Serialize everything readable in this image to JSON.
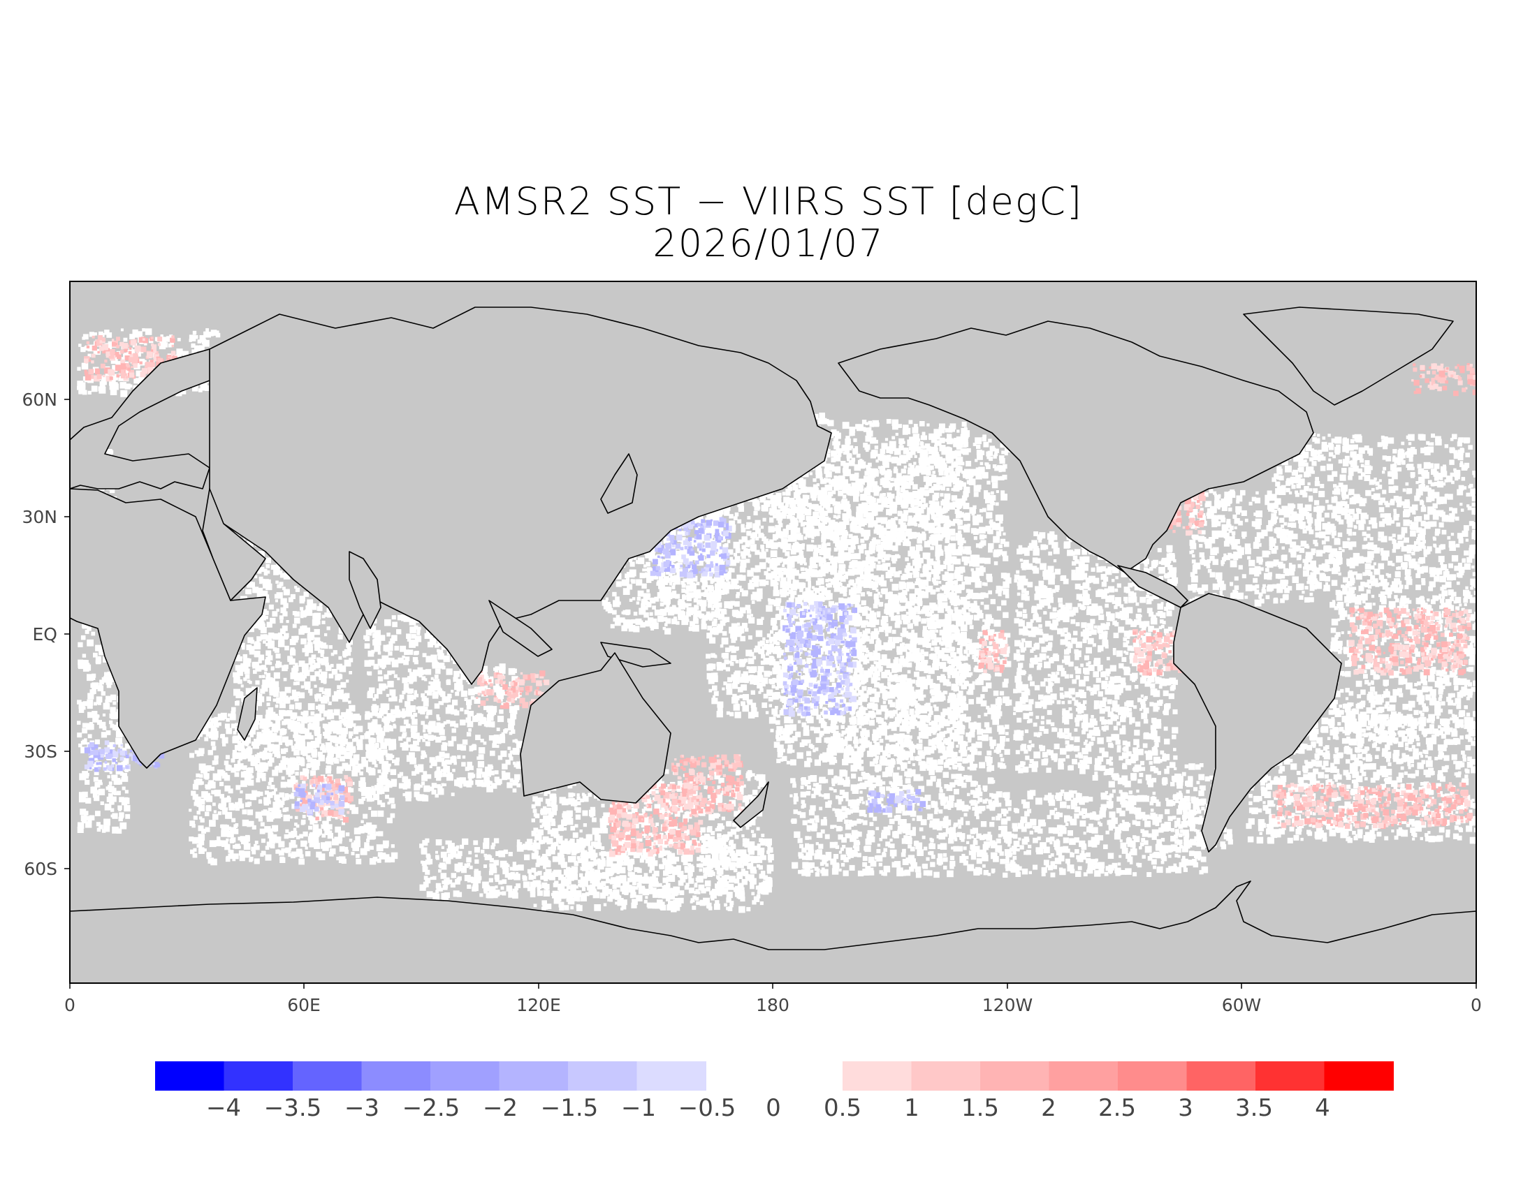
{
  "title": "AMSR2 SST − VIIRS SST [degC]",
  "date": "2026/01/07",
  "map": {
    "background_color": "#c8c8c8",
    "no_data_color": "#c8c8c8",
    "near_zero_color": "#ffffff",
    "coastline_color": "#000000",
    "lat_labels": [
      "60N",
      "30N",
      "EQ",
      "30S",
      "60S"
    ],
    "lon_labels": [
      "0",
      "60E",
      "120E",
      "180",
      "120W",
      "60W",
      "0"
    ]
  },
  "colorbar": {
    "negative_colors": [
      "#0000ff",
      "#3232ff",
      "#6464ff",
      "#8c8cff",
      "#a0a0ff",
      "#b4b4ff",
      "#c8c8ff",
      "#dcdcff"
    ],
    "positive_colors": [
      "#ffdcdc",
      "#ffc8c8",
      "#ffb4b4",
      "#ffa0a0",
      "#ff8c8c",
      "#ff6464",
      "#ff3232",
      "#ff0000"
    ],
    "labels": [
      "−4",
      "−3.5",
      "−3",
      "−2.5",
      "−2",
      "−1.5",
      "−1",
      "−0.5",
      "0",
      "0.5",
      "1",
      "1.5",
      "2",
      "2.5",
      "3",
      "3.5",
      "4"
    ]
  }
}
